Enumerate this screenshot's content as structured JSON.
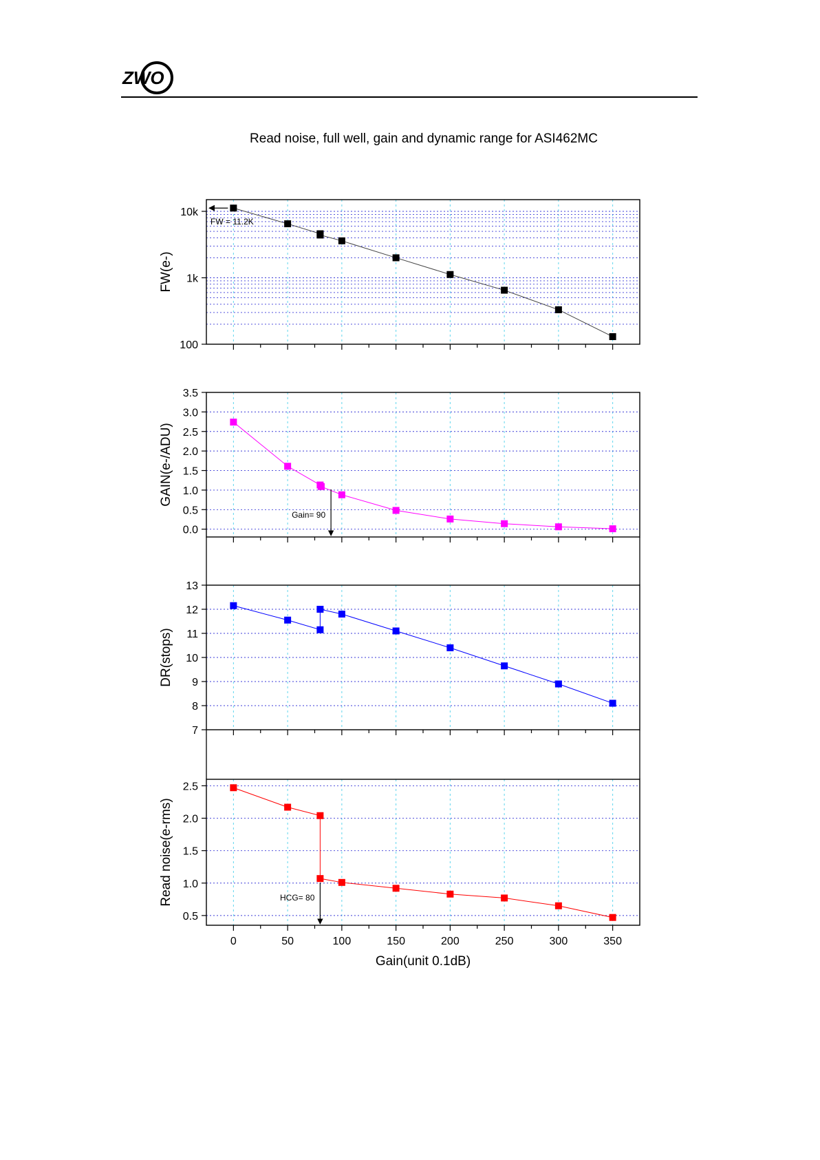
{
  "header": {
    "logo_text": "ZWO"
  },
  "chart_data": {
    "type": "line",
    "title": "Read noise, full well, gain and dynamic range for ASI462MC",
    "xlabel": "Gain(unit 0.1dB)",
    "xlim": [
      -25,
      375
    ],
    "xticks": [
      0,
      50,
      100,
      150,
      200,
      250,
      300,
      350
    ],
    "grid": true,
    "panels": [
      {
        "id": "fw",
        "ylabel": "FW(e-)",
        "scale": "log",
        "ylim": [
          100,
          15000
        ],
        "ytick_labels": [
          {
            "value": 100,
            "label": "100"
          },
          {
            "value": 1000,
            "label": "1k"
          },
          {
            "value": 10000,
            "label": "10k"
          }
        ],
        "color": "#000000",
        "x": [
          0,
          50,
          80,
          80,
          100,
          150,
          200,
          250,
          300,
          350
        ],
        "y": [
          11200,
          6500,
          4600,
          4400,
          3600,
          2000,
          1120,
          650,
          330,
          130
        ],
        "annotation": {
          "text": "FW = 11.2K",
          "value": 11200
        }
      },
      {
        "id": "gain",
        "ylabel": "GAIN(e-/ADU)",
        "scale": "linear",
        "ylim": [
          -0.2,
          3.5
        ],
        "yticks": [
          0.0,
          0.5,
          1.0,
          1.5,
          2.0,
          2.5,
          3.0,
          3.5
        ],
        "ytick_labels": [
          "0.0",
          "0.5",
          "1.0",
          "1.5",
          "2.0",
          "2.5",
          "3.0",
          "3.5"
        ],
        "color": "#ff00ff",
        "x": [
          0,
          50,
          80,
          81,
          100,
          150,
          200,
          250,
          300,
          350
        ],
        "y": [
          2.74,
          1.61,
          1.13,
          1.09,
          0.88,
          0.48,
          0.26,
          0.14,
          0.06,
          0.01
        ],
        "annotation": {
          "text": "Gain= 90",
          "x": 90
        }
      },
      {
        "id": "dr",
        "ylabel": "DR(stops)",
        "scale": "linear",
        "ylim": [
          7,
          13
        ],
        "yticks": [
          7,
          8,
          9,
          10,
          11,
          12,
          13
        ],
        "ytick_labels": [
          "7",
          "8",
          "9",
          "10",
          "11",
          "12",
          "13"
        ],
        "color": "#0000ff",
        "x": [
          0,
          50,
          80,
          80,
          100,
          150,
          200,
          250,
          300,
          350
        ],
        "y": [
          12.15,
          11.55,
          11.15,
          12.0,
          11.8,
          11.1,
          10.4,
          9.65,
          8.9,
          8.1
        ]
      },
      {
        "id": "rn",
        "ylabel": "Read noise(e-rms)",
        "scale": "linear",
        "ylim": [
          0.35,
          2.6
        ],
        "yticks": [
          0.5,
          1.0,
          1.5,
          2.0,
          2.5
        ],
        "ytick_labels": [
          "0.5",
          "1.0",
          "1.5",
          "2.0",
          "2.5"
        ],
        "color": "#ff0000",
        "x": [
          0,
          50,
          80,
          80,
          100,
          150,
          200,
          250,
          300,
          350
        ],
        "y": [
          2.47,
          2.17,
          2.04,
          1.07,
          1.01,
          0.92,
          0.83,
          0.77,
          0.65,
          0.47
        ],
        "annotation": {
          "text": "HCG= 80",
          "x": 80
        }
      }
    ]
  }
}
